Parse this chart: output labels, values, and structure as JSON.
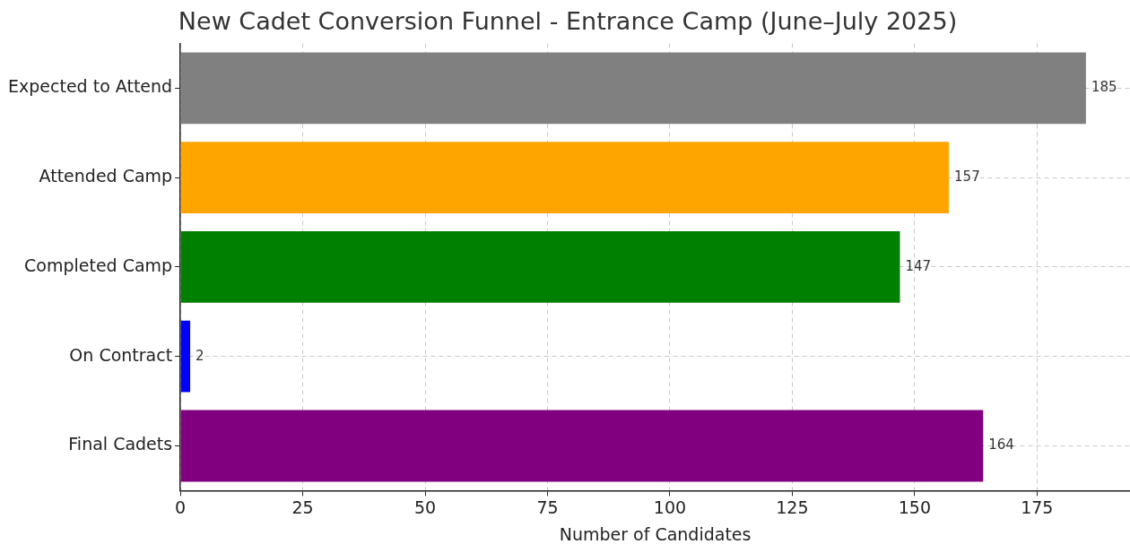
{
  "chart_data": {
    "type": "bar",
    "orientation": "horizontal",
    "title": "New Cadet Conversion Funnel - Entrance Camp (June–July 2025)",
    "xlabel": "Number of Candidates",
    "categories": [
      "Expected to Attend",
      "Attended Camp",
      "Completed Camp",
      "On Contract",
      "Final Cadets"
    ],
    "values": [
      185,
      157,
      147,
      2,
      164
    ],
    "colors": [
      "#808080",
      "#ffa500",
      "#008000",
      "#0000ff",
      "#800080"
    ],
    "xlim": [
      0,
      194
    ],
    "xticks": [
      0,
      25,
      50,
      75,
      100,
      125,
      150,
      175
    ],
    "grid": true,
    "data_labels": true
  }
}
